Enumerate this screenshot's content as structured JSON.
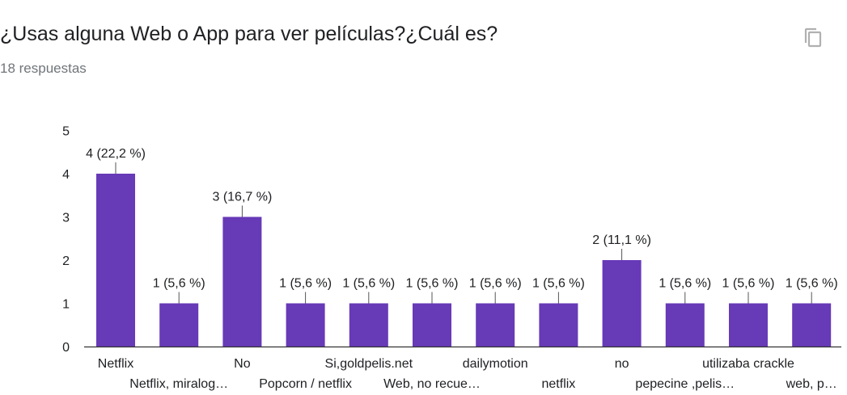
{
  "header": {
    "title": "¿Usas alguna Web o App para ver películas?¿Cuál es?",
    "subtitle": "18 respuestas",
    "copy_icon": "copy-icon"
  },
  "colors": {
    "bar": "#673ab7",
    "axis": "#333333",
    "text": "#202124",
    "muted": "#70757a"
  },
  "chart_data": {
    "type": "bar",
    "categories": [
      "Netflix",
      "Netflix, miralog…",
      "No",
      "Popcorn / netflix",
      "Si,goldpelis.net",
      "Web, no recue…",
      "dailymotion",
      "netflix",
      "no",
      "pepecine ,pelis…",
      "utilizaba crackle",
      "web, p…"
    ],
    "values": [
      4,
      1,
      3,
      1,
      1,
      1,
      1,
      1,
      2,
      1,
      1,
      1
    ],
    "data_labels": [
      "4 (22,2 %)",
      "1 (5,6 %)",
      "3 (16,7 %)",
      "1 (5,6 %)",
      "1 (5,6 %)",
      "1 (5,6 %)",
      "1 (5,6 %)",
      "1 (5,6 %)",
      "2 (11,1 %)",
      "1 (5,6 %)",
      "1 (5,6 %)",
      "1 (5,6 %)"
    ],
    "y_ticks": [
      "0",
      "1",
      "2",
      "3",
      "4",
      "5"
    ],
    "ylim": [
      0,
      5
    ],
    "grid": false,
    "legend": "none"
  }
}
